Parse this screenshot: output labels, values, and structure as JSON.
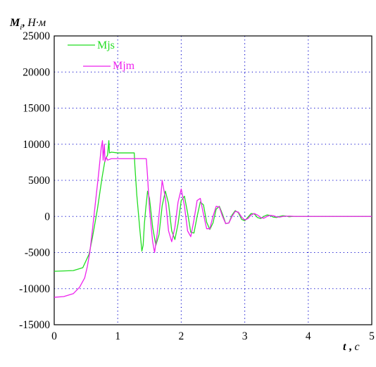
{
  "chart_data": {
    "type": "line",
    "ylabel_symbol": "M",
    "ylabel_subscript": "i",
    "ylabel_unit": "Н·м",
    "xlabel_symbol": "t",
    "xlabel_unit": "с",
    "xlim": [
      0,
      5
    ],
    "ylim": [
      -15000,
      25000
    ],
    "x_ticks": [
      "0",
      "1",
      "2",
      "3",
      "4",
      "5"
    ],
    "y_ticks": [
      "25000",
      "20000",
      "15000",
      "10000",
      "5000",
      "0",
      "-5000",
      "-10000",
      "-15000"
    ],
    "grid": "dotted",
    "legend_position": "top-left",
    "series": [
      {
        "name": "Mjs",
        "color": "#22dd22",
        "points": [
          [
            0,
            -7600
          ],
          [
            0.3,
            -7500
          ],
          [
            0.45,
            -7100
          ],
          [
            0.55,
            -5200
          ],
          [
            0.6,
            -3000
          ],
          [
            0.68,
            1000
          ],
          [
            0.75,
            5200
          ],
          [
            0.8,
            7800
          ],
          [
            0.84,
            8500
          ],
          [
            0.86,
            10500
          ],
          [
            0.87,
            8800
          ],
          [
            0.9,
            8900
          ],
          [
            1.0,
            8800
          ],
          [
            1.2,
            8800
          ],
          [
            1.26,
            8800
          ],
          [
            1.27,
            7000
          ],
          [
            1.3,
            3000
          ],
          [
            1.35,
            -2000
          ],
          [
            1.38,
            -4800
          ],
          [
            1.4,
            -4000
          ],
          [
            1.42,
            -1000
          ],
          [
            1.44,
            1000
          ],
          [
            1.47,
            3500
          ],
          [
            1.5,
            2500
          ],
          [
            1.55,
            -1500
          ],
          [
            1.6,
            -4000
          ],
          [
            1.65,
            -2500
          ],
          [
            1.7,
            1500
          ],
          [
            1.75,
            3500
          ],
          [
            1.8,
            1800
          ],
          [
            1.85,
            -2000
          ],
          [
            1.9,
            -3200
          ],
          [
            1.95,
            -1000
          ],
          [
            2.0,
            2200
          ],
          [
            2.05,
            2800
          ],
          [
            2.1,
            500
          ],
          [
            2.15,
            -2200
          ],
          [
            2.2,
            -2300
          ],
          [
            2.25,
            0
          ],
          [
            2.3,
            2000
          ],
          [
            2.35,
            1600
          ],
          [
            2.4,
            -800
          ],
          [
            2.45,
            -1800
          ],
          [
            2.5,
            -900
          ],
          [
            2.55,
            1000
          ],
          [
            2.6,
            1400
          ],
          [
            2.65,
            300
          ],
          [
            2.7,
            -1000
          ],
          [
            2.75,
            -900
          ],
          [
            2.8,
            200
          ],
          [
            2.85,
            800
          ],
          [
            2.9,
            500
          ],
          [
            2.95,
            -400
          ],
          [
            3.0,
            -600
          ],
          [
            3.05,
            -100
          ],
          [
            3.1,
            400
          ],
          [
            3.15,
            350
          ],
          [
            3.2,
            -150
          ],
          [
            3.25,
            -300
          ],
          [
            3.3,
            0
          ],
          [
            3.35,
            200
          ],
          [
            3.4,
            150
          ],
          [
            3.45,
            -100
          ],
          [
            3.5,
            -150
          ],
          [
            3.55,
            0
          ],
          [
            3.6,
            100
          ],
          [
            3.65,
            50
          ],
          [
            3.7,
            -50
          ],
          [
            3.75,
            0
          ],
          [
            3.8,
            0
          ],
          [
            5.0,
            0
          ]
        ]
      },
      {
        "name": "Mjm",
        "color": "#ee22ee",
        "points": [
          [
            0,
            -11200
          ],
          [
            0.15,
            -11100
          ],
          [
            0.3,
            -10700
          ],
          [
            0.4,
            -9800
          ],
          [
            0.48,
            -8500
          ],
          [
            0.52,
            -7000
          ],
          [
            0.56,
            -5000
          ],
          [
            0.6,
            -2000
          ],
          [
            0.65,
            2000
          ],
          [
            0.7,
            6000
          ],
          [
            0.74,
            9500
          ],
          [
            0.76,
            10500
          ],
          [
            0.77,
            7800
          ],
          [
            0.79,
            10000
          ],
          [
            0.8,
            7600
          ],
          [
            0.82,
            8200
          ],
          [
            0.84,
            7800
          ],
          [
            0.9,
            8000
          ],
          [
            1.0,
            8000
          ],
          [
            1.2,
            8000
          ],
          [
            1.4,
            8000
          ],
          [
            1.45,
            8000
          ],
          [
            1.47,
            5500
          ],
          [
            1.5,
            1000
          ],
          [
            1.55,
            -3500
          ],
          [
            1.58,
            -5000
          ],
          [
            1.62,
            -2500
          ],
          [
            1.67,
            2000
          ],
          [
            1.7,
            5000
          ],
          [
            1.75,
            2500
          ],
          [
            1.8,
            -2000
          ],
          [
            1.85,
            -3500
          ],
          [
            1.9,
            -1500
          ],
          [
            1.95,
            2000
          ],
          [
            2.0,
            3800
          ],
          [
            2.05,
            1500
          ],
          [
            2.1,
            -2000
          ],
          [
            2.15,
            -2800
          ],
          [
            2.2,
            -500
          ],
          [
            2.25,
            2200
          ],
          [
            2.3,
            2500
          ],
          [
            2.35,
            300
          ],
          [
            2.4,
            -1700
          ],
          [
            2.45,
            -1700
          ],
          [
            2.5,
            0
          ],
          [
            2.55,
            1400
          ],
          [
            2.6,
            1300
          ],
          [
            2.65,
            0
          ],
          [
            2.7,
            -1000
          ],
          [
            2.75,
            -900
          ],
          [
            2.8,
            0
          ],
          [
            2.85,
            700
          ],
          [
            2.9,
            600
          ],
          [
            2.95,
            -100
          ],
          [
            3.0,
            -500
          ],
          [
            3.05,
            -300
          ],
          [
            3.1,
            200
          ],
          [
            3.15,
            400
          ],
          [
            3.2,
            200
          ],
          [
            3.25,
            -150
          ],
          [
            3.3,
            -250
          ],
          [
            3.35,
            0
          ],
          [
            3.4,
            150
          ],
          [
            3.45,
            100
          ],
          [
            3.5,
            -50
          ],
          [
            3.55,
            -100
          ],
          [
            3.6,
            0
          ],
          [
            3.7,
            50
          ],
          [
            3.8,
            0
          ],
          [
            5.0,
            0
          ]
        ]
      }
    ]
  }
}
